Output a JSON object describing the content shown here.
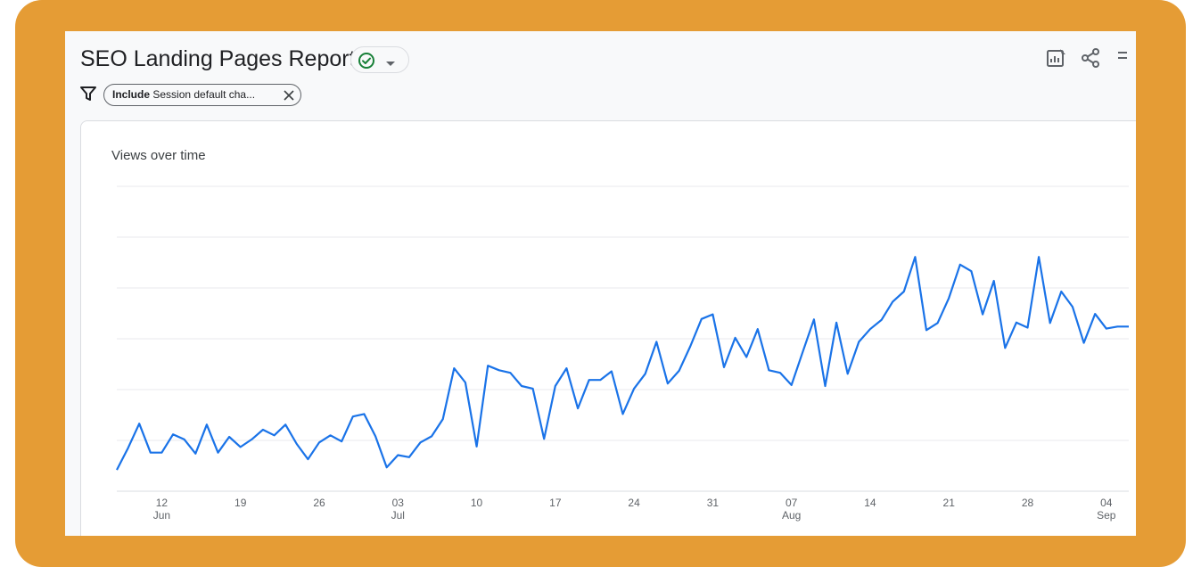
{
  "report": {
    "title": "SEO Landing Pages Report"
  },
  "filter": {
    "include_label": "Include",
    "chip_text": "Session default cha..."
  },
  "card": {
    "title": "Views over time"
  },
  "icons": {
    "status": "check-circle-icon",
    "status_caret": "caret-down-icon",
    "customize": "customize-report-icon",
    "share": "share-icon",
    "filter": "filter-icon",
    "remove_filter": "close-icon"
  },
  "colors": {
    "background_frame": "#e59c35",
    "line": "#1a73e8",
    "success": "#188038"
  },
  "chart_data": {
    "type": "line",
    "title": "Views over time",
    "xlabel": "",
    "ylabel": "",
    "ylim": [
      0,
      6
    ],
    "grid": true,
    "x_tick_labels": [
      {
        "date": "2025-06-12",
        "label": "12",
        "sub": "Jun"
      },
      {
        "date": "2025-06-19",
        "label": "19",
        "sub": ""
      },
      {
        "date": "2025-06-26",
        "label": "26",
        "sub": ""
      },
      {
        "date": "2025-07-03",
        "label": "03",
        "sub": "Jul"
      },
      {
        "date": "2025-07-10",
        "label": "10",
        "sub": ""
      },
      {
        "date": "2025-07-17",
        "label": "17",
        "sub": ""
      },
      {
        "date": "2025-07-24",
        "label": "24",
        "sub": ""
      },
      {
        "date": "2025-07-31",
        "label": "31",
        "sub": ""
      },
      {
        "date": "2025-08-07",
        "label": "07",
        "sub": "Aug"
      },
      {
        "date": "2025-08-14",
        "label": "14",
        "sub": ""
      },
      {
        "date": "2025-08-21",
        "label": "21",
        "sub": ""
      },
      {
        "date": "2025-08-28",
        "label": "28",
        "sub": ""
      },
      {
        "date": "2025-09-04",
        "label": "04",
        "sub": "Sep"
      }
    ],
    "series": [
      {
        "x": [
          "2025-06-08",
          "2025-06-09",
          "2025-06-10",
          "2025-06-11",
          "2025-06-12",
          "2025-06-13",
          "2025-06-14",
          "2025-06-15",
          "2025-06-16",
          "2025-06-17",
          "2025-06-18",
          "2025-06-19",
          "2025-06-20",
          "2025-06-21",
          "2025-06-22",
          "2025-06-23",
          "2025-06-24",
          "2025-06-25",
          "2025-06-26",
          "2025-06-27",
          "2025-06-28",
          "2025-06-29",
          "2025-06-30",
          "2025-07-01",
          "2025-07-02",
          "2025-07-03",
          "2025-07-04",
          "2025-07-05",
          "2025-07-06",
          "2025-07-07",
          "2025-07-08",
          "2025-07-09",
          "2025-07-10",
          "2025-07-11",
          "2025-07-12",
          "2025-07-13",
          "2025-07-14",
          "2025-07-15",
          "2025-07-16",
          "2025-07-17",
          "2025-07-18",
          "2025-07-19",
          "2025-07-20",
          "2025-07-21",
          "2025-07-22",
          "2025-07-23",
          "2025-07-24",
          "2025-07-25",
          "2025-07-26",
          "2025-07-27",
          "2025-07-28",
          "2025-07-29",
          "2025-07-30",
          "2025-07-31",
          "2025-08-01",
          "2025-08-02",
          "2025-08-03",
          "2025-08-04",
          "2025-08-05",
          "2025-08-06",
          "2025-08-07",
          "2025-08-08",
          "2025-08-09",
          "2025-08-10",
          "2025-08-11",
          "2025-08-12",
          "2025-08-13",
          "2025-08-14",
          "2025-08-15",
          "2025-08-16",
          "2025-08-17",
          "2025-08-18",
          "2025-08-19",
          "2025-08-20",
          "2025-08-21",
          "2025-08-22",
          "2025-08-23",
          "2025-08-24",
          "2025-08-25",
          "2025-08-26",
          "2025-08-27",
          "2025-08-28",
          "2025-08-29",
          "2025-08-30",
          "2025-08-31",
          "2025-09-01",
          "2025-09-02",
          "2025-09-03",
          "2025-09-04",
          "2025-09-05",
          "2025-09-06"
        ],
        "values": [
          0.42,
          0.85,
          1.33,
          0.76,
          0.76,
          1.12,
          1.02,
          0.74,
          1.31,
          0.76,
          1.07,
          0.87,
          1.02,
          1.21,
          1.1,
          1.31,
          0.93,
          0.63,
          0.96,
          1.1,
          0.98,
          1.47,
          1.52,
          1.08,
          0.47,
          0.71,
          0.67,
          0.96,
          1.08,
          1.42,
          2.42,
          2.14,
          0.88,
          2.47,
          2.38,
          2.33,
          2.07,
          2.02,
          1.03,
          2.07,
          2.42,
          1.63,
          2.19,
          2.19,
          2.36,
          1.52,
          2.02,
          2.31,
          2.94,
          2.12,
          2.37,
          2.85,
          3.39,
          3.48,
          2.44,
          3.02,
          2.64,
          3.19,
          2.38,
          2.33,
          2.09,
          2.74,
          3.38,
          2.07,
          3.32,
          2.31,
          2.94,
          3.19,
          3.37,
          3.73,
          3.93,
          4.61,
          3.17,
          3.31,
          3.8,
          4.46,
          4.33,
          3.48,
          4.14,
          2.82,
          3.32,
          3.22,
          4.61,
          3.31,
          3.93,
          3.63,
          2.92,
          3.49,
          3.2,
          3.24,
          3.24
        ]
      }
    ]
  }
}
